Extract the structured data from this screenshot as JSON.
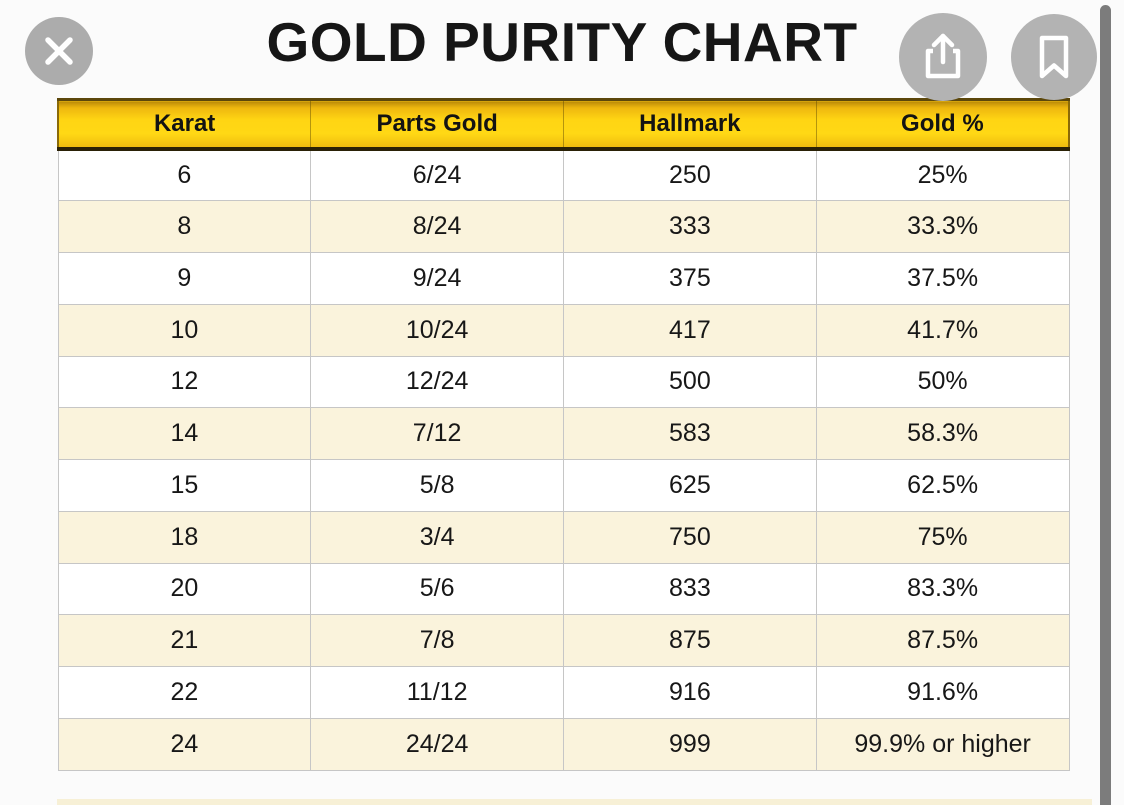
{
  "title": "GOLD PURITY CHART",
  "toolbar": {
    "close_icon": "close-x",
    "share_icon": "share-box-arrow-up",
    "bookmark_icon": "bookmark-outline"
  },
  "chart_data": {
    "type": "table",
    "title": "GOLD PURITY CHART",
    "columns": [
      "Karat",
      "Parts Gold",
      "Hallmark",
      "Gold %"
    ],
    "rows": [
      [
        "6",
        "6/24",
        "250",
        "25%"
      ],
      [
        "8",
        "8/24",
        "333",
        "33.3%"
      ],
      [
        "9",
        "9/24",
        "375",
        "37.5%"
      ],
      [
        "10",
        "10/24",
        "417",
        "41.7%"
      ],
      [
        "12",
        "12/24",
        "500",
        "50%"
      ],
      [
        "14",
        "7/12",
        "583",
        "58.3%"
      ],
      [
        "15",
        "5/8",
        "625",
        "62.5%"
      ],
      [
        "18",
        "3/4",
        "750",
        "75%"
      ],
      [
        "20",
        "5/6",
        "833",
        "83.3%"
      ],
      [
        "21",
        "7/8",
        "875",
        "87.5%"
      ],
      [
        "22",
        "11/12",
        "916",
        "91.6%"
      ],
      [
        "24",
        "24/24",
        "999",
        "99.9% or higher"
      ]
    ]
  },
  "colors": {
    "header_gradient_top": "#b98908",
    "header_gradient_bright": "#ffd513",
    "header_border_dark": "#2a2106",
    "row_white": "#ffffff",
    "row_cream": "#faf3dc",
    "cell_border": "#c6c6c6",
    "circle_button_gray": "#b3b3b3",
    "scrollbar_gray": "#7c7c7c",
    "title_color": "#161616",
    "background": "#fbfbfb"
  }
}
